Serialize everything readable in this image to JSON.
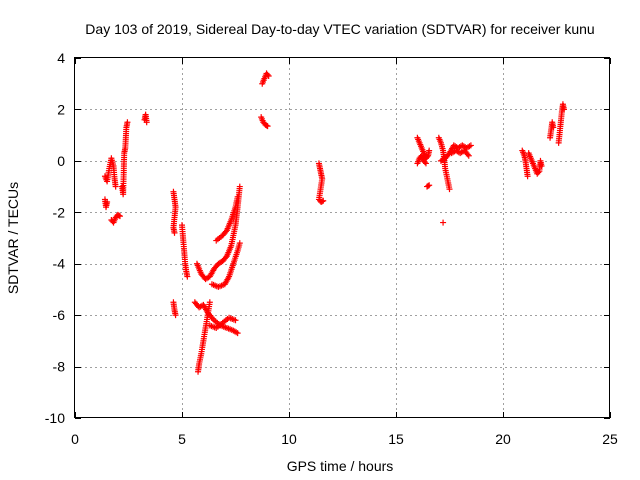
{
  "chart_data": {
    "type": "scatter",
    "title": "Day 103 of 2019, Sidereal Day-to-day VTEC variation (SDTVAR) for receiver kunu",
    "xlabel": "GPS time / hours",
    "ylabel": "SDTVAR / TECUs",
    "xlim": [
      0,
      25
    ],
    "ylim": [
      -10,
      4
    ],
    "xticks": [
      0,
      5,
      10,
      15,
      20,
      25
    ],
    "yticks": [
      -10,
      -8,
      -6,
      -4,
      -2,
      0,
      2,
      4
    ],
    "grid": true,
    "marker": "+",
    "color": "#ff0000",
    "series": [
      {
        "name": "SDTVAR",
        "segments": [
          [
            [
              1.4,
              -0.6
            ],
            [
              1.5,
              -0.8
            ],
            [
              1.6,
              -0.3
            ],
            [
              1.7,
              0.1
            ],
            [
              1.8,
              -0.2
            ],
            [
              1.85,
              -0.7
            ],
            [
              1.9,
              -1.0
            ]
          ],
          [
            [
              1.4,
              -1.5
            ],
            [
              1.45,
              -1.8
            ],
            [
              1.5,
              -1.6
            ]
          ],
          [
            [
              1.7,
              -2.3
            ],
            [
              1.8,
              -2.4
            ],
            [
              1.9,
              -2.2
            ],
            [
              2.0,
              -2.1
            ],
            [
              2.1,
              -2.15
            ]
          ],
          [
            [
              2.2,
              -1.0
            ],
            [
              2.25,
              -1.3
            ],
            [
              2.3,
              0.3
            ],
            [
              2.35,
              0.5
            ],
            [
              2.4,
              1.3
            ],
            [
              2.45,
              1.5
            ]
          ],
          [
            [
              3.25,
              1.6
            ],
            [
              3.3,
              1.8
            ],
            [
              3.35,
              1.5
            ]
          ],
          [
            [
              4.6,
              -1.2
            ],
            [
              4.65,
              -1.5
            ],
            [
              4.7,
              -1.8
            ],
            [
              4.6,
              -2.6
            ],
            [
              4.65,
              -2.8
            ]
          ],
          [
            [
              4.6,
              -5.5
            ],
            [
              4.65,
              -5.8
            ],
            [
              4.7,
              -6.0
            ]
          ],
          [
            [
              5.0,
              -2.5
            ],
            [
              5.05,
              -3.0
            ],
            [
              5.1,
              -3.5
            ],
            [
              5.15,
              -4.0
            ],
            [
              5.2,
              -4.3
            ],
            [
              5.25,
              -4.5
            ]
          ],
          [
            [
              5.75,
              -8.2
            ],
            [
              5.8,
              -7.9
            ],
            [
              5.9,
              -7.5
            ],
            [
              6.0,
              -7.0
            ],
            [
              6.1,
              -6.5
            ],
            [
              6.2,
              -6.0
            ],
            [
              6.3,
              -5.5
            ]
          ],
          [
            [
              5.6,
              -5.5
            ],
            [
              5.8,
              -5.7
            ],
            [
              6.0,
              -5.6
            ],
            [
              6.2,
              -5.9
            ],
            [
              6.5,
              -6.2
            ],
            [
              6.8,
              -6.4
            ],
            [
              7.1,
              -6.5
            ],
            [
              7.4,
              -6.6
            ],
            [
              7.6,
              -6.7
            ]
          ],
          [
            [
              6.3,
              -6.4
            ],
            [
              6.6,
              -6.5
            ],
            [
              6.9,
              -6.3
            ],
            [
              7.2,
              -6.1
            ],
            [
              7.5,
              -6.2
            ]
          ],
          [
            [
              5.7,
              -4.0
            ],
            [
              5.9,
              -4.4
            ],
            [
              6.1,
              -4.6
            ],
            [
              6.3,
              -4.5
            ],
            [
              6.5,
              -4.2
            ],
            [
              6.7,
              -4.0
            ],
            [
              6.9,
              -3.9
            ],
            [
              7.1,
              -3.7
            ],
            [
              7.3,
              -3.3
            ],
            [
              7.5,
              -2.5
            ],
            [
              7.6,
              -1.8
            ],
            [
              7.7,
              -1.0
            ]
          ],
          [
            [
              6.4,
              -4.8
            ],
            [
              6.7,
              -4.9
            ],
            [
              7.0,
              -4.8
            ],
            [
              7.2,
              -4.5
            ],
            [
              7.4,
              -4.0
            ],
            [
              7.6,
              -3.5
            ],
            [
              7.7,
              -3.2
            ]
          ],
          [
            [
              6.6,
              -3.1
            ],
            [
              6.9,
              -2.9
            ],
            [
              7.1,
              -2.7
            ],
            [
              7.3,
              -2.3
            ],
            [
              7.5,
              -1.8
            ],
            [
              7.6,
              -1.4
            ]
          ],
          [
            [
              8.7,
              1.7
            ],
            [
              8.8,
              1.5
            ],
            [
              8.9,
              1.4
            ],
            [
              9.0,
              1.35
            ]
          ],
          [
            [
              8.75,
              3.0
            ],
            [
              8.85,
              3.2
            ],
            [
              8.95,
              3.4
            ],
            [
              9.05,
              3.3
            ]
          ],
          [
            [
              11.4,
              -0.1
            ],
            [
              11.45,
              -0.3
            ],
            [
              11.5,
              -0.5
            ],
            [
              11.55,
              -0.7
            ],
            [
              11.4,
              -1.5
            ],
            [
              11.5,
              -1.6
            ],
            [
              11.6,
              -1.55
            ]
          ],
          [
            [
              16.0,
              0.9
            ],
            [
              16.1,
              0.7
            ],
            [
              16.2,
              0.5
            ],
            [
              16.3,
              0.3
            ],
            [
              16.4,
              0.1
            ],
            [
              16.5,
              0.2
            ],
            [
              16.55,
              0.4
            ]
          ],
          [
            [
              16.0,
              -0.1
            ],
            [
              16.1,
              0.1
            ],
            [
              16.2,
              0.2
            ],
            [
              16.3,
              0.0
            ],
            [
              16.4,
              -0.1
            ]
          ],
          [
            [
              16.45,
              -1.0
            ],
            [
              16.55,
              -0.95
            ]
          ],
          [
            [
              17.0,
              0.9
            ],
            [
              17.1,
              0.7
            ],
            [
              17.2,
              0.4
            ],
            [
              17.25,
              0.1
            ],
            [
              17.3,
              -0.3
            ],
            [
              17.4,
              -0.7
            ],
            [
              17.5,
              -1.1
            ]
          ],
          [
            [
              17.1,
              0.0
            ],
            [
              17.3,
              0.1
            ],
            [
              17.5,
              0.3
            ],
            [
              17.7,
              0.6
            ],
            [
              17.9,
              0.5
            ],
            [
              18.1,
              0.6
            ],
            [
              18.3,
              0.5
            ],
            [
              18.5,
              0.6
            ]
          ],
          [
            [
              17.6,
              0.3
            ],
            [
              17.8,
              0.4
            ],
            [
              18.0,
              0.3
            ],
            [
              18.2,
              0.4
            ],
            [
              18.4,
              0.2
            ]
          ],
          [
            [
              17.2,
              -2.4
            ]
          ],
          [
            [
              20.9,
              0.4
            ],
            [
              21.0,
              0.2
            ],
            [
              21.05,
              0.0
            ],
            [
              21.1,
              -0.3
            ],
            [
              21.15,
              -0.6
            ]
          ],
          [
            [
              21.2,
              0.3
            ],
            [
              21.3,
              0.1
            ],
            [
              21.4,
              -0.1
            ],
            [
              21.5,
              -0.3
            ],
            [
              21.6,
              -0.5
            ],
            [
              21.7,
              -0.4
            ],
            [
              21.75,
              0.0
            ],
            [
              21.8,
              -0.2
            ]
          ],
          [
            [
              22.2,
              0.9
            ],
            [
              22.25,
              1.2
            ],
            [
              22.3,
              1.5
            ],
            [
              22.35,
              1.3
            ]
          ],
          [
            [
              22.6,
              0.7
            ],
            [
              22.65,
              1.1
            ],
            [
              22.7,
              1.5
            ],
            [
              22.75,
              1.9
            ],
            [
              22.8,
              2.2
            ],
            [
              22.85,
              2.0
            ]
          ]
        ]
      }
    ]
  }
}
